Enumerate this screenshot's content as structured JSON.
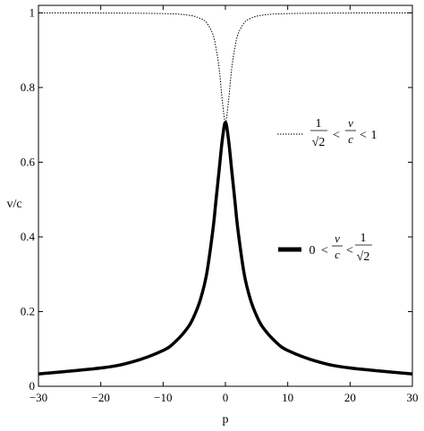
{
  "chart_data": {
    "type": "line",
    "title": "",
    "xlabel": "p",
    "ylabel": "v/c",
    "xlim": [
      -30,
      30
    ],
    "ylim": [
      0,
      1.02
    ],
    "xticks": [
      -30,
      -20,
      -10,
      0,
      10,
      20,
      30
    ],
    "yticks": [
      0,
      0.2,
      0.4,
      0.6,
      0.8,
      1
    ],
    "xtick_labels": [
      "−30",
      "−20",
      "−10",
      "0",
      "10",
      "20",
      "30"
    ],
    "ytick_labels": [
      "0",
      "0.2",
      "0.4",
      "0.6",
      "0.8",
      "1"
    ],
    "grid": false,
    "series": [
      {
        "style": "dotted-thin",
        "x": [
          -30,
          -20,
          -10,
          -6,
          -4,
          -3,
          -2,
          -1.5,
          -1,
          -0.5,
          0,
          0.5,
          1,
          1.5,
          2,
          3,
          4,
          6,
          10,
          20,
          30
        ],
        "y": [
          0.9997,
          0.9995,
          0.998,
          0.994,
          0.985,
          0.973,
          0.942,
          0.905,
          0.85,
          0.765,
          0.707,
          0.765,
          0.85,
          0.905,
          0.942,
          0.973,
          0.985,
          0.994,
          0.998,
          0.9995,
          0.9997
        ]
      },
      {
        "style": "solid-thick",
        "x": [
          -30,
          -20,
          -15,
          -10,
          -8,
          -6,
          -5,
          -4,
          -3,
          -2,
          -1.5,
          -1,
          -0.5,
          0,
          0.5,
          1,
          1.5,
          2,
          3,
          4,
          5,
          6,
          8,
          10,
          15,
          20,
          30
        ],
        "y": [
          0.033,
          0.049,
          0.065,
          0.096,
          0.12,
          0.158,
          0.189,
          0.233,
          0.302,
          0.42,
          0.5,
          0.58,
          0.66,
          0.707,
          0.66,
          0.58,
          0.5,
          0.42,
          0.302,
          0.233,
          0.189,
          0.158,
          0.12,
          0.096,
          0.065,
          0.049,
          0.033
        ]
      }
    ],
    "legend": [
      {
        "numerator": "1",
        "denominator": "√2",
        "lt1": "<",
        "vnum": "v",
        "vden": "c",
        "lt2": "<",
        "right": "1"
      },
      {
        "left": "0",
        "lt1": "<",
        "vnum": "v",
        "vden": "c",
        "lt2": "<",
        "numerator": "1",
        "denominator": "√2"
      }
    ]
  }
}
